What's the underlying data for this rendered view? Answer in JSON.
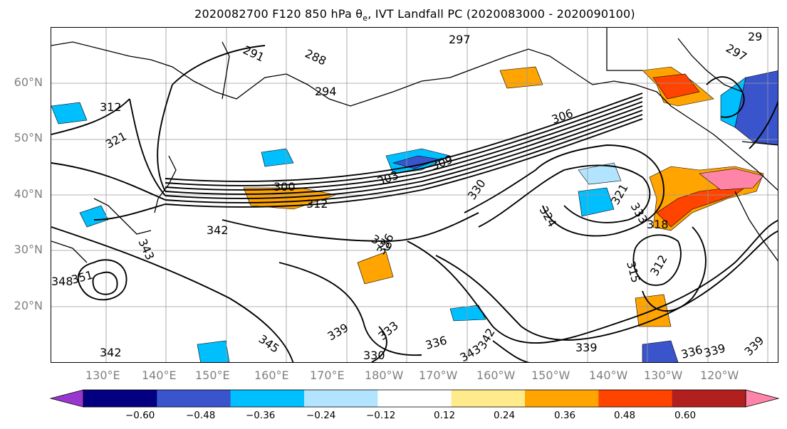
{
  "title": "2020082700 F120 850 hPa θ",
  "title_sub": "e",
  "title_rest": ", IVT Landfall PC (2020083000 - 2020090100)",
  "lat_labels": [
    "60°N",
    "50°N",
    "40°N",
    "30°N",
    "20°N"
  ],
  "lon_labels": [
    "130°E",
    "140°E",
    "150°E",
    "160°E",
    "170°E",
    "180°W",
    "170°W",
    "160°W",
    "150°W",
    "140°W",
    "130°W",
    "120°W"
  ],
  "colorbar": {
    "colors": [
      "#9a36d0",
      "#020080",
      "#3a55cc",
      "#00bfff",
      "#b2e4ff",
      "#ffffff",
      "#ffea8c",
      "#ffa400",
      "#ff4400",
      "#b21f1f",
      "#ff85a8"
    ],
    "ticks": [
      "−0.60",
      "−0.48",
      "−0.36",
      "−0.24",
      "−0.12",
      "0.12",
      "0.24",
      "0.36",
      "0.48",
      "0.60"
    ]
  },
  "contour_labels": [
    "291",
    "288",
    "294",
    "312",
    "321",
    "300",
    "303",
    "309",
    "306",
    "312",
    "342",
    "343",
    "330",
    "336",
    "339",
    "351",
    "348",
    "324",
    "321",
    "333",
    "318",
    "315",
    "312",
    "339",
    "333",
    "330",
    "336",
    "343",
    "342",
    "345",
    "342",
    "339",
    "339",
    "336",
    "339",
    "297",
    "29",
    "297"
  ]
}
